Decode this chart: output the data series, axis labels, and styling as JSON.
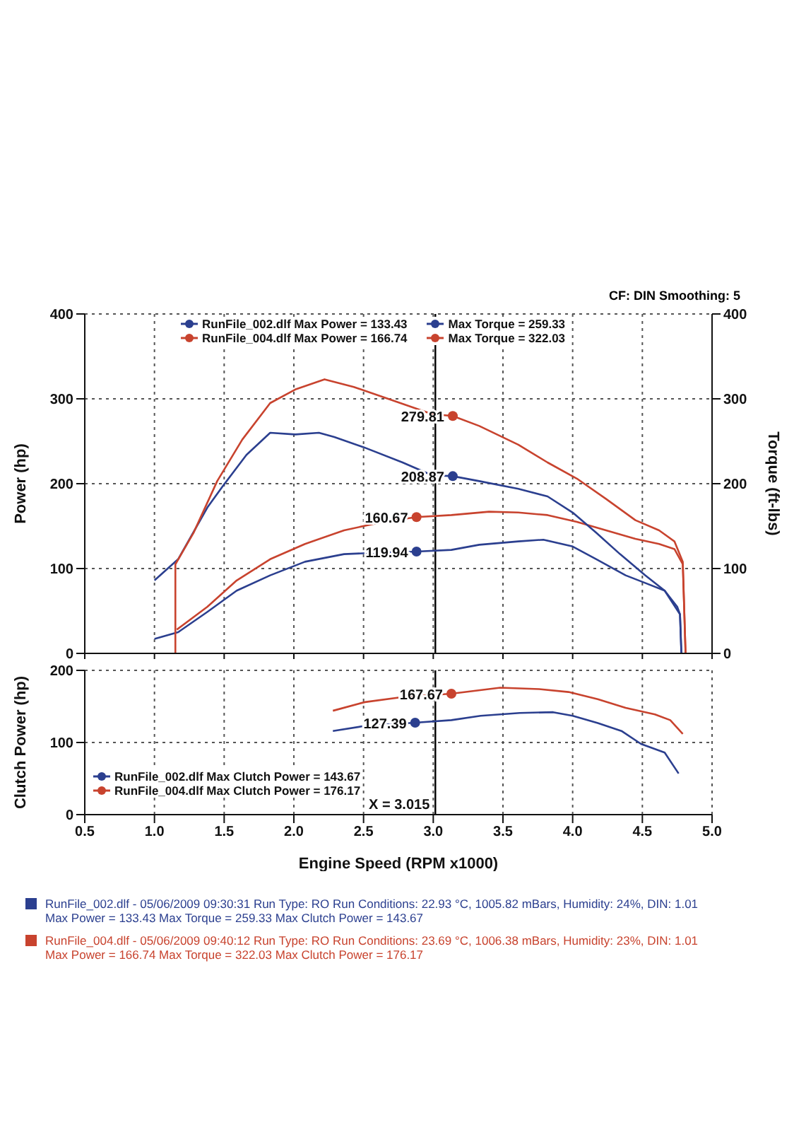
{
  "chart_data": [
    {
      "type": "line",
      "ylabel": "Power (hp)",
      "y2label": "Torque (ft-lbs)",
      "annotations": [
        "CF: DIN  Smoothing: 5"
      ],
      "xlim": [
        0.5,
        5.0
      ],
      "xticks": [
        0.5,
        1,
        1.5,
        2,
        2.5,
        3,
        3.5,
        4,
        4.5,
        5
      ],
      "ylim": [
        0,
        400
      ],
      "yticks": [
        0,
        100,
        200,
        300,
        400
      ],
      "y2lim": [
        0,
        400
      ],
      "y2ticks": [
        0,
        100,
        200,
        300,
        400
      ],
      "tick_labels": "y",
      "grid": true,
      "legend": "top",
      "ref_lines": [
        {
          "axis": "x",
          "value": 3.015,
          "label": null,
          "color": "#000000"
        }
      ],
      "series": [
        {
          "name": "RunFile_002.dlf Max Power = 133.43",
          "color": "#2b3f8f",
          "x": [
            1.0,
            1.17,
            1.38,
            1.59,
            1.83,
            2.08,
            2.36,
            2.64,
            2.88,
            3.13,
            3.33,
            3.61,
            3.79,
            4.0,
            4.17,
            4.38,
            4.52,
            4.66,
            4.77,
            4.78
          ],
          "values": [
            17,
            25,
            49,
            74,
            92,
            108,
            117,
            119,
            119.94,
            122,
            128,
            132,
            134,
            126,
            111,
            92,
            83,
            74,
            46,
            0
          ],
          "value_labels": [
            null,
            null,
            null,
            null,
            null,
            null,
            null,
            null,
            "119.94",
            null,
            null,
            null,
            null,
            null,
            null,
            null,
            null,
            null,
            null,
            null
          ]
        },
        {
          "name": "RunFile_004.dlf Max Power = 166.74",
          "color": "#c8432e",
          "x": [
            1.16,
            1.38,
            1.59,
            1.83,
            2.08,
            2.36,
            2.64,
            2.88,
            3.13,
            3.4,
            3.61,
            3.82,
            4.03,
            4.24,
            4.45,
            4.62,
            4.73,
            4.79,
            4.81
          ],
          "values": [
            28,
            55,
            86,
            111,
            129,
            145,
            155,
            160.67,
            163,
            167,
            166,
            163,
            155,
            145,
            135,
            129,
            123,
            105,
            0
          ],
          "value_labels": [
            null,
            null,
            null,
            null,
            null,
            null,
            null,
            "160.67",
            null,
            null,
            null,
            null,
            null,
            null,
            null,
            null,
            null,
            null,
            null
          ]
        },
        {
          "name": "Max Torque = 259.33",
          "color": "#2b3f8f",
          "axis": "y2",
          "x": [
            1.0,
            1.17,
            1.38,
            1.49,
            1.66,
            1.83,
            2.01,
            2.18,
            2.29,
            2.5,
            2.78,
            2.99,
            3.14,
            3.33,
            3.61,
            3.82,
            4.0,
            4.17,
            4.34,
            4.52,
            4.66,
            4.75,
            4.77,
            4.78
          ],
          "values": [
            86,
            111,
            172,
            197,
            234,
            260,
            258,
            260,
            255,
            243,
            225,
            210,
            208.87,
            203,
            194,
            185,
            166,
            142,
            117,
            92,
            74,
            55,
            46,
            0
          ],
          "value_labels": [
            null,
            null,
            null,
            null,
            null,
            null,
            null,
            null,
            null,
            null,
            null,
            null,
            "208.87",
            null,
            null,
            null,
            null,
            null,
            null,
            null,
            null,
            null,
            null,
            null
          ]
        },
        {
          "name": "Max Torque = 322.03",
          "color": "#c8432e",
          "axis": "y2",
          "x": [
            1.15,
            1.15,
            1.28,
            1.45,
            1.63,
            1.83,
            2.01,
            2.22,
            2.43,
            2.64,
            2.99,
            3.14,
            3.33,
            3.61,
            3.82,
            4.03,
            4.24,
            4.45,
            4.62,
            4.73,
            4.79,
            4.81
          ],
          "values": [
            0,
            105,
            142,
            203,
            252,
            295,
            311,
            323,
            314,
            302,
            282,
            279.81,
            268,
            246,
            225,
            206,
            182,
            157,
            145,
            132,
            108,
            0
          ],
          "value_labels": [
            null,
            null,
            null,
            null,
            null,
            null,
            null,
            null,
            null,
            null,
            null,
            "279.81",
            null,
            null,
            null,
            null,
            null,
            null,
            null,
            null,
            null,
            null
          ]
        }
      ]
    },
    {
      "type": "line",
      "xlabel": "Engine Speed (RPM x1000)",
      "ylabel": "Clutch Power (hp)",
      "annotations": [
        "RunFile_002.dlf - 05/06/2009 09:30:31  Run Type: RO  Run Conditions: 22.93 °C, 1005.82 mBars,  Humidity:  24%, DIN: 1.01",
        "Max Power = 133.43  Max Torque = 259.33  Max Clutch Power = 143.67",
        "RunFile_004.dlf - 05/06/2009 09:40:12  Run Type: RO  Run Conditions: 23.69 °C, 1006.38 mBars,  Humidity:  23%, DIN: 1.01",
        "Max Power = 166.74  Max Torque = 322.03  Max Clutch Power = 176.17"
      ],
      "xlim": [
        0.5,
        5.0
      ],
      "xticks": [
        {
          "value": 0.5,
          "label": "0.5"
        },
        {
          "value": 1,
          "label": "1.0"
        },
        {
          "value": 1.5,
          "label": "1.5"
        },
        {
          "value": 2,
          "label": "2.0"
        },
        {
          "value": 2.5,
          "label": "2.5"
        },
        {
          "value": 3,
          "label": "3.0"
        },
        {
          "value": 3.5,
          "label": "3.5"
        },
        {
          "value": 4,
          "label": "4.0"
        },
        {
          "value": 4.5,
          "label": "4.5"
        },
        {
          "value": 5,
          "label": "5.0"
        }
      ],
      "ylim": [
        0,
        200
      ],
      "yticks": [
        0,
        100,
        200
      ],
      "grid": true,
      "legend": "left",
      "ref_lines": [
        {
          "axis": "x",
          "value": 3.015,
          "label": "X = 3.015",
          "color": "#000000"
        }
      ],
      "series": [
        {
          "name": "RunFile_002.dlf Max Clutch Power = 143.67",
          "color": "#2b3f8f",
          "x": [
            2.28,
            2.51,
            2.87,
            3.13,
            3.34,
            3.62,
            3.86,
            4.0,
            4.18,
            4.35,
            4.49,
            4.66,
            4.76
          ],
          "values": [
            116,
            123,
            127.39,
            131,
            137,
            141,
            142,
            137,
            127,
            116,
            98,
            86,
            57
          ],
          "value_labels": [
            null,
            null,
            "127.39",
            null,
            null,
            null,
            null,
            null,
            null,
            null,
            null,
            null,
            null
          ]
        },
        {
          "name": "RunFile_004.dlf Max Clutch Power = 176.17",
          "color": "#c8432e",
          "x": [
            2.28,
            2.51,
            2.78,
            3.13,
            3.48,
            3.76,
            3.97,
            4.18,
            4.38,
            4.59,
            4.7,
            4.79
          ],
          "values": [
            144,
            156,
            163,
            167.67,
            176,
            174,
            170,
            160,
            148,
            139,
            131,
            112
          ],
          "value_labels": [
            null,
            null,
            null,
            "167.67",
            null,
            null,
            null,
            null,
            null,
            null,
            null,
            null
          ]
        }
      ]
    }
  ]
}
